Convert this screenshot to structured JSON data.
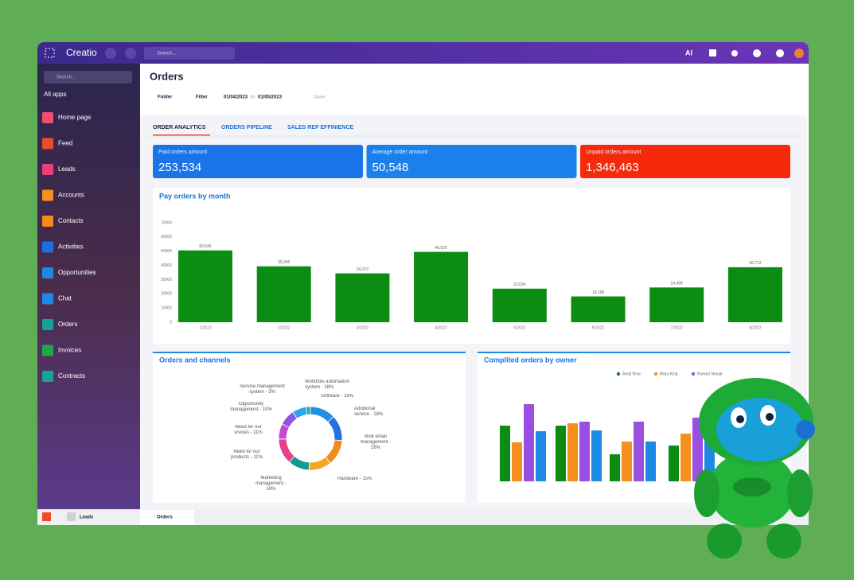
{
  "topbar": {
    "brand": "Creatio",
    "search": "Search...",
    "ai": "AI"
  },
  "sidebar": {
    "search": "Search...",
    "apps": "All apps",
    "items": [
      "Home page",
      "Feed",
      "Leads",
      "Accounts",
      "Contacts",
      "Activities",
      "Opportunities",
      "Chat",
      "Orders",
      "Invoices",
      "Contracts"
    ]
  },
  "header": {
    "title": "Orders",
    "folder": "Folder",
    "filter": "Filter",
    "date_from": "01/04/2023",
    "date_sep": "till",
    "date_to": "01/05/2023",
    "owner": "Owner"
  },
  "tabs": [
    "ORDER ANALYTICS",
    "ORDERS PIPELINE",
    "SALES REP EFFINIENCE"
  ],
  "kpis": [
    {
      "label": "Paid orders amount",
      "value": "253,534"
    },
    {
      "label": "Average order amount",
      "value": "50,548"
    },
    {
      "label": "Unpaid orders amount",
      "value": "1,346,463"
    }
  ],
  "chart_data": [
    {
      "type": "bar",
      "title": "Pay orders by month",
      "categories": [
        "1/2022",
        "2/2022",
        "3/2022",
        "4/2022",
        "5/2022",
        "6/2022",
        "7/2022",
        "8/2022"
      ],
      "values": [
        50545,
        39345,
        34373,
        49526,
        23634,
        18158,
        24458,
        38712
      ],
      "value_labels": [
        "50,545",
        "39,345",
        "34,373",
        "49,526",
        "23,634",
        "18,158",
        "24,458",
        "38,712"
      ],
      "color": "#0b8c12",
      "ylim": [
        0,
        70000
      ],
      "yticks": [
        0,
        10000,
        20000,
        30000,
        40000,
        50000,
        60000,
        70000
      ]
    },
    {
      "type": "pie",
      "donut": true,
      "title": "Orders and channels",
      "values": [
        18,
        18,
        18,
        16,
        15,
        18,
        11,
        11,
        10,
        3
      ],
      "value_labels": [
        "Workflow automation system - 18%",
        "Software - 18%",
        "Additional service - 18%",
        "Bulk email management - 16%",
        "Hardware - 15%",
        "Marketing management - 18%",
        "Need for our products - 11%",
        "Need for our srvices - 11%",
        "Opportunity management - 10%",
        "Service management system - 3%"
      ],
      "colors": [
        "#1f8fe0",
        "#2a6fdb",
        "#f28c1c",
        "#f5a623",
        "#14998f",
        "#e8408a",
        "#c44bd6",
        "#8a55e6",
        "#2aa6e8",
        "#1ab0a0"
      ]
    },
    {
      "type": "bar",
      "title": "Complited orders by owner",
      "categories": [
        null,
        null,
        null,
        null
      ],
      "ylim": [
        0,
        110
      ],
      "series": [
        {
          "name": "Andy Row",
          "color": "#0b8c12",
          "values": [
            70,
            70,
            34,
            45
          ]
        },
        {
          "name": "Mary King",
          "color": "#f5901e",
          "values": [
            49,
            73,
            50,
            60
          ]
        },
        {
          "name": "Roman Novak",
          "color": "#9b4fe0",
          "values": [
            97,
            75,
            75,
            80
          ]
        },
        {
          "color": "#1e88e5",
          "values": [
            63,
            64,
            50,
            55
          ]
        }
      ]
    }
  ],
  "taskbar": [
    "Leads",
    "Orders"
  ]
}
